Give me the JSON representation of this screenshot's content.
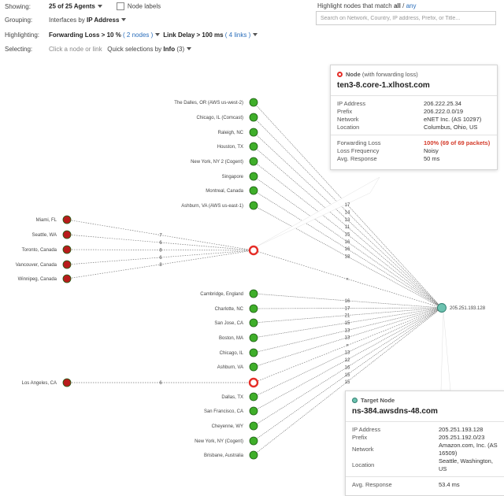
{
  "controls": {
    "showing_label": "Showing:",
    "showing_value": "25 of 25 Agents",
    "node_labels": "Node labels",
    "grouping_label": "Grouping:",
    "grouping_prefix": "Interfaces by",
    "grouping_value": "IP Address",
    "highlighting_label": "Highlighting:",
    "fwd_loss": "Forwarding Loss > 10 %",
    "fwd_loss_count": "( 2 nodes )",
    "link_delay": "Link Delay > 100 ms",
    "link_delay_count": "( 4 links )",
    "selecting_label": "Selecting:",
    "selecting_hint": "Click a node or link",
    "quick_sel_prefix": "Quick selections by",
    "quick_sel_value": "Info",
    "quick_sel_count": "(3)"
  },
  "highlight": {
    "title_prefix": "Highlight nodes that match",
    "all": "all",
    "sep": "/",
    "any": "any",
    "search_placeholder": "Search on Network, Country, IP address, Prefix, or Title..."
  },
  "agents_group1": [
    "The Dalles, OR (AWS us-west-2)",
    "Chicago, IL (Comcast)",
    "Raleigh, NC",
    "Houston, TX",
    "New York, NY 2 (Cogent)",
    "Singapore",
    "Montreal, Canada",
    "Ashburn, VA (AWS us-east-1)"
  ],
  "agents_red": [
    "Miami, FL",
    "Seattle, WA",
    "Toronto, Canada",
    "Vancouver, Canada",
    "Winnipeg, Canada"
  ],
  "red_link_labels": [
    "7",
    "6",
    "8",
    "6",
    "8"
  ],
  "agents_group2": [
    "Cambridge, England",
    "Charlotte, NC",
    "San Jose, CA",
    "Boston, MA",
    "Chicago, IL",
    "Ashburn, VA"
  ],
  "agent_la": "Los Angeles, CA",
  "la_link_label": "6",
  "agents_group3": [
    "Dallas, TX",
    "San Francisco, CA",
    "Cheyenne, WY",
    "New York, NY (Cogent)",
    "Brisbane, Australia"
  ],
  "upper_delays": [
    "17",
    "14",
    "13",
    "11",
    "15",
    "16",
    "16",
    "18"
  ],
  "group2_delays": [
    "16",
    "17",
    "21",
    "15",
    "13",
    "13"
  ],
  "lower_delays": [
    "13",
    "12",
    "16",
    "15",
    "15",
    "17"
  ],
  "x_mark": "×",
  "target_ip": "205.251.193.128",
  "node_popup": {
    "heading": "Node",
    "heading_note": "(with forwarding loss)",
    "hostname": "ten3-8.core-1.xlhost.com",
    "rows": [
      {
        "k": "IP Address",
        "v": "206.222.25.34"
      },
      {
        "k": "Prefix",
        "v": "206.222.0.0/19"
      },
      {
        "k": "Network",
        "v": "eNET Inc. (AS 10297)"
      },
      {
        "k": "Location",
        "v": "Columbus, Ohio, US"
      }
    ],
    "rows2": [
      {
        "k": "Forwarding Loss",
        "v": "100% (69 of 69 packets)"
      },
      {
        "k": "Loss Frequency",
        "v": "Noisy"
      },
      {
        "k": "Avg. Response",
        "v": "50 ms"
      }
    ]
  },
  "target_popup": {
    "heading": "Target Node",
    "hostname": "ns-384.awsdns-48.com",
    "rows": [
      {
        "k": "IP Address",
        "v": "205.251.193.128"
      },
      {
        "k": "Prefix",
        "v": "205.251.192.0/23"
      },
      {
        "k": "Network",
        "v": "Amazon.com, Inc. (AS 16509)"
      },
      {
        "k": "Location",
        "v": "Seattle, Washington, US"
      }
    ],
    "rows2": [
      {
        "k": "Avg. Response",
        "v": "53.4 ms"
      }
    ]
  },
  "colors": {
    "agent_green": "#3fae2a",
    "agent_red": "#b81c1c",
    "loss_red": "#e52d27",
    "target_teal": "#6cc2b0",
    "link": "#7a7a7a"
  }
}
